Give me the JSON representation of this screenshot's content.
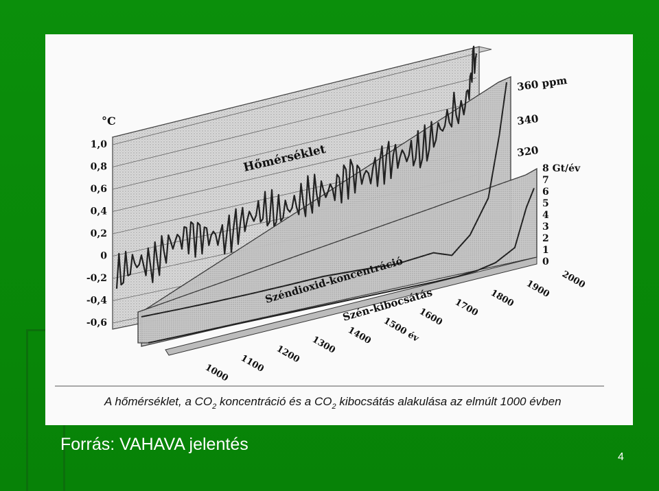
{
  "slide": {
    "source_label": "Forrás: VAHAVA jelentés",
    "page_number": "4",
    "colors": {
      "background": "#0a8a0a",
      "panel": "#fafafa",
      "text": "#ffffff"
    }
  },
  "chart_data": {
    "type": "line",
    "caption": {
      "pre": "A hőmérséklet, a CO",
      "sub1": "2",
      "mid": " koncentráció és a CO",
      "sub2": "2",
      "post": " kibocsátás alakulása az elmúlt 1000 évben"
    },
    "series_labels": {
      "temperature": "Hőmérséklet",
      "co2_concentration": "Széndioxid-koncentráció",
      "carbon_emission": "Szén-kibocsátás"
    },
    "temperature_axis": {
      "unit": "°C",
      "ticks": [
        "1,0",
        "0,8",
        "0,6",
        "0,4",
        "0,2",
        "0",
        "-0,2",
        "-0,4",
        "-0,6"
      ],
      "range": [
        -0.6,
        1.0
      ]
    },
    "concentration_axis": {
      "ticks": [
        "360 ppm",
        "340",
        "320"
      ],
      "range": [
        280,
        360
      ]
    },
    "emission_axis": {
      "ticks": [
        "8 Gt/év",
        "7",
        "6",
        "5",
        "4",
        "3",
        "2",
        "1",
        "0"
      ],
      "range": [
        0,
        8
      ]
    },
    "x_axis": {
      "ticks": [
        "1000",
        "1100",
        "1200",
        "1300",
        "1400",
        "1500 év",
        "1600",
        "1700",
        "1800",
        "1900",
        "2000"
      ],
      "range": [
        1000,
        2000
      ]
    },
    "series": [
      {
        "id": "temperature",
        "x": [
          1000,
          1050,
          1100,
          1150,
          1200,
          1250,
          1300,
          1350,
          1400,
          1450,
          1500,
          1550,
          1600,
          1650,
          1700,
          1750,
          1800,
          1850,
          1900,
          1950,
          1980,
          2000
        ],
        "y": [
          -0.2,
          -0.1,
          -0.15,
          0.0,
          0.05,
          0.0,
          -0.05,
          0.05,
          0.1,
          0.05,
          0.1,
          0.15,
          0.15,
          0.25,
          0.2,
          0.3,
          0.3,
          0.3,
          0.45,
          0.6,
          0.8,
          1.0
        ]
      },
      {
        "id": "co2_concentration",
        "x": [
          1000,
          1100,
          1200,
          1300,
          1400,
          1500,
          1600,
          1700,
          1800,
          1850,
          1900,
          1950,
          1980,
          2000
        ],
        "y": [
          280,
          281,
          282,
          283,
          284,
          285,
          284,
          283,
          285,
          288,
          296,
          311,
          338,
          360
        ]
      },
      {
        "id": "carbon_emission",
        "x": [
          1000,
          1700,
          1750,
          1800,
          1850,
          1900,
          1950,
          1980,
          2000
        ],
        "y": [
          0,
          0,
          0.01,
          0.05,
          0.2,
          0.6,
          1.6,
          5.0,
          6.5
        ]
      }
    ]
  }
}
